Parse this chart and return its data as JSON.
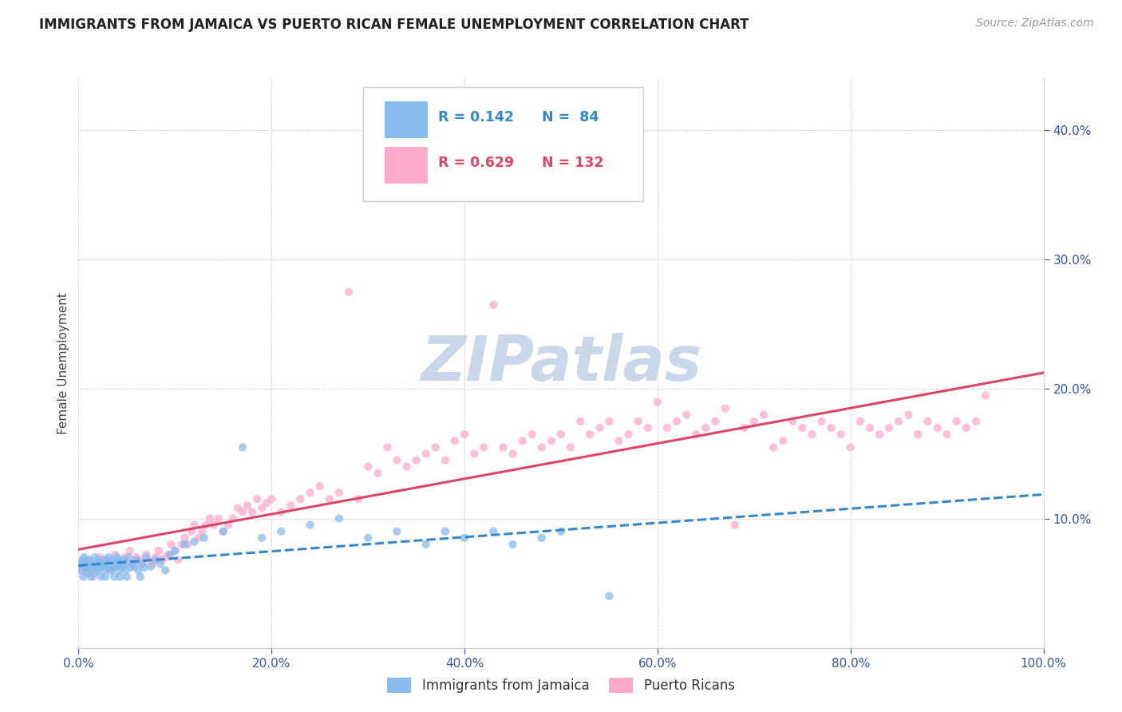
{
  "title": "IMMIGRANTS FROM JAMAICA VS PUERTO RICAN FEMALE UNEMPLOYMENT CORRELATION CHART",
  "source": "Source: ZipAtlas.com",
  "ylabel": "Female Unemployment",
  "xlim": [
    0.0,
    1.0
  ],
  "ylim": [
    0.0,
    0.44
  ],
  "xtick_labels": [
    "0.0%",
    "20.0%",
    "40.0%",
    "60.0%",
    "80.0%",
    "100.0%"
  ],
  "xtick_vals": [
    0.0,
    0.2,
    0.4,
    0.6,
    0.8,
    1.0
  ],
  "ytick_labels": [
    "10.0%",
    "20.0%",
    "30.0%",
    "40.0%"
  ],
  "ytick_vals": [
    0.1,
    0.2,
    0.3,
    0.4
  ],
  "title_fontsize": 12,
  "source_fontsize": 10,
  "legend_r1": "R = 0.142",
  "legend_n1": "N =  84",
  "legend_r2": "R = 0.629",
  "legend_n2": "N = 132",
  "color_blue": "#88bbee",
  "color_pink": "#ffaacc",
  "line_blue": "#3388cc",
  "line_pink": "#dd4466",
  "watermark": "ZIPatlas",
  "watermark_color": "#c8d8ea",
  "blue_scatter_x": [
    0.002,
    0.003,
    0.004,
    0.005,
    0.006,
    0.007,
    0.008,
    0.009,
    0.01,
    0.011,
    0.012,
    0.013,
    0.014,
    0.015,
    0.016,
    0.017,
    0.018,
    0.019,
    0.02,
    0.021,
    0.022,
    0.023,
    0.024,
    0.025,
    0.026,
    0.027,
    0.028,
    0.029,
    0.03,
    0.031,
    0.032,
    0.033,
    0.034,
    0.035,
    0.036,
    0.037,
    0.038,
    0.039,
    0.04,
    0.041,
    0.042,
    0.043,
    0.044,
    0.045,
    0.046,
    0.047,
    0.048,
    0.049,
    0.05,
    0.052,
    0.054,
    0.056,
    0.058,
    0.06,
    0.062,
    0.064,
    0.066,
    0.068,
    0.07,
    0.075,
    0.08,
    0.085,
    0.09,
    0.095,
    0.1,
    0.11,
    0.12,
    0.13,
    0.15,
    0.17,
    0.19,
    0.21,
    0.24,
    0.27,
    0.3,
    0.33,
    0.36,
    0.38,
    0.4,
    0.43,
    0.45,
    0.48,
    0.5,
    0.55
  ],
  "blue_scatter_y": [
    0.065,
    0.06,
    0.068,
    0.055,
    0.07,
    0.062,
    0.058,
    0.065,
    0.063,
    0.068,
    0.06,
    0.055,
    0.065,
    0.062,
    0.058,
    0.07,
    0.063,
    0.065,
    0.06,
    0.068,
    0.062,
    0.055,
    0.065,
    0.063,
    0.068,
    0.06,
    0.055,
    0.065,
    0.062,
    0.07,
    0.063,
    0.065,
    0.06,
    0.068,
    0.062,
    0.055,
    0.065,
    0.063,
    0.07,
    0.068,
    0.06,
    0.055,
    0.065,
    0.062,
    0.063,
    0.068,
    0.065,
    0.06,
    0.055,
    0.07,
    0.062,
    0.065,
    0.063,
    0.068,
    0.06,
    0.055,
    0.065,
    0.062,
    0.07,
    0.063,
    0.068,
    0.065,
    0.06,
    0.072,
    0.075,
    0.08,
    0.082,
    0.085,
    0.09,
    0.155,
    0.085,
    0.09,
    0.095,
    0.1,
    0.085,
    0.09,
    0.08,
    0.09,
    0.085,
    0.09,
    0.08,
    0.085,
    0.09,
    0.04
  ],
  "pink_scatter_x": [
    0.002,
    0.005,
    0.008,
    0.01,
    0.012,
    0.015,
    0.018,
    0.02,
    0.022,
    0.025,
    0.028,
    0.03,
    0.033,
    0.036,
    0.038,
    0.04,
    0.042,
    0.045,
    0.048,
    0.05,
    0.053,
    0.056,
    0.06,
    0.063,
    0.066,
    0.07,
    0.073,
    0.077,
    0.08,
    0.083,
    0.086,
    0.09,
    0.093,
    0.096,
    0.1,
    0.103,
    0.107,
    0.11,
    0.113,
    0.117,
    0.12,
    0.124,
    0.128,
    0.132,
    0.136,
    0.14,
    0.145,
    0.15,
    0.155,
    0.16,
    0.165,
    0.17,
    0.175,
    0.18,
    0.185,
    0.19,
    0.195,
    0.2,
    0.21,
    0.22,
    0.23,
    0.24,
    0.25,
    0.26,
    0.27,
    0.28,
    0.29,
    0.3,
    0.31,
    0.32,
    0.33,
    0.34,
    0.35,
    0.36,
    0.37,
    0.38,
    0.39,
    0.4,
    0.41,
    0.42,
    0.43,
    0.44,
    0.45,
    0.46,
    0.47,
    0.48,
    0.49,
    0.5,
    0.51,
    0.52,
    0.53,
    0.54,
    0.55,
    0.56,
    0.57,
    0.58,
    0.59,
    0.6,
    0.61,
    0.62,
    0.63,
    0.64,
    0.65,
    0.66,
    0.67,
    0.68,
    0.69,
    0.7,
    0.71,
    0.72,
    0.73,
    0.74,
    0.75,
    0.76,
    0.77,
    0.78,
    0.79,
    0.8,
    0.81,
    0.82,
    0.83,
    0.84,
    0.85,
    0.86,
    0.87,
    0.88,
    0.89,
    0.9,
    0.91,
    0.92,
    0.93,
    0.94
  ],
  "pink_scatter_y": [
    0.06,
    0.065,
    0.058,
    0.068,
    0.06,
    0.055,
    0.065,
    0.062,
    0.07,
    0.063,
    0.068,
    0.065,
    0.06,
    0.062,
    0.072,
    0.068,
    0.065,
    0.063,
    0.07,
    0.068,
    0.075,
    0.065,
    0.07,
    0.068,
    0.065,
    0.072,
    0.068,
    0.065,
    0.07,
    0.075,
    0.068,
    0.07,
    0.072,
    0.08,
    0.075,
    0.068,
    0.08,
    0.085,
    0.08,
    0.09,
    0.095,
    0.085,
    0.09,
    0.095,
    0.1,
    0.095,
    0.1,
    0.09,
    0.095,
    0.1,
    0.108,
    0.105,
    0.11,
    0.105,
    0.115,
    0.108,
    0.112,
    0.115,
    0.105,
    0.11,
    0.115,
    0.12,
    0.125,
    0.115,
    0.12,
    0.275,
    0.115,
    0.14,
    0.135,
    0.155,
    0.145,
    0.14,
    0.145,
    0.15,
    0.155,
    0.145,
    0.16,
    0.165,
    0.15,
    0.155,
    0.265,
    0.155,
    0.15,
    0.16,
    0.165,
    0.155,
    0.16,
    0.165,
    0.155,
    0.175,
    0.165,
    0.17,
    0.175,
    0.16,
    0.165,
    0.175,
    0.17,
    0.19,
    0.17,
    0.175,
    0.18,
    0.165,
    0.17,
    0.175,
    0.185,
    0.095,
    0.17,
    0.175,
    0.18,
    0.155,
    0.16,
    0.175,
    0.17,
    0.165,
    0.175,
    0.17,
    0.165,
    0.155,
    0.175,
    0.17,
    0.165,
    0.17,
    0.175,
    0.18,
    0.165,
    0.175,
    0.17,
    0.165,
    0.175,
    0.17,
    0.175,
    0.195
  ]
}
